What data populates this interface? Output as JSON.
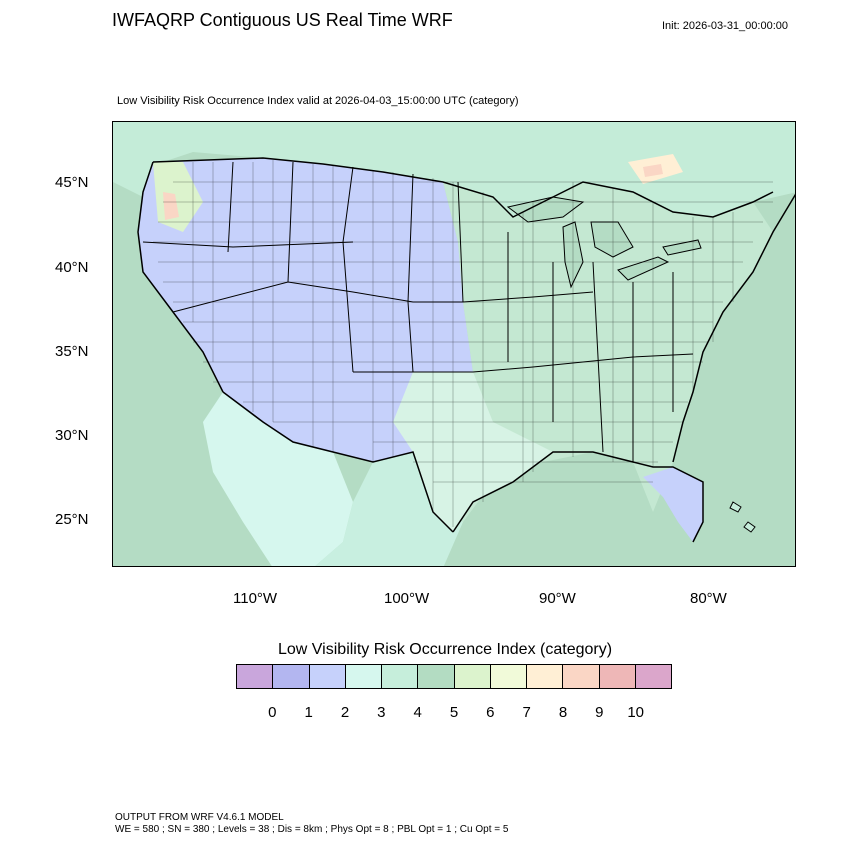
{
  "header": {
    "title": "IWFAQRP Contiguous US Real Time WRF",
    "init": "Init: 2026-03-31_00:00:00",
    "subtitle": "Low Visibility Risk Occurrence Index valid at 2026-04-03_15:00:00 UTC   (category)"
  },
  "map": {
    "lat_labels": [
      "45°N",
      "40°N",
      "35°N",
      "30°N",
      "25°N"
    ],
    "lon_labels": [
      "110°W",
      "100°W",
      "90°W",
      "80°W"
    ],
    "colors": {
      "ocean": "#b4dcc4",
      "cat2": "#c6d1fb",
      "cat3": "#d6f7ee",
      "cat4": "#c6eedb",
      "cat5": "#b3dcc2",
      "cat6": "#dcf3cd",
      "cat8": "#ffeed3",
      "cat9": "#f9d4c5",
      "border": "#000000"
    }
  },
  "legend": {
    "title": "Low Visibility Risk Occurrence Index  (category)",
    "ticks": [
      "0",
      "1",
      "2",
      "3",
      "4",
      "5",
      "6",
      "7",
      "8",
      "9",
      "10"
    ],
    "colors": [
      "#c9a6dc",
      "#b3b6f0",
      "#c6d1fb",
      "#d6f7ee",
      "#c6eedb",
      "#b3dcc2",
      "#dcf3cd",
      "#f1fad9",
      "#ffefd5",
      "#fad6c5",
      "#eeb7b7",
      "#dba6cb"
    ]
  },
  "footer": {
    "line1": "OUTPUT FROM WRF V4.6.1 MODEL",
    "line2": "WE = 580 ; SN = 380 ; Levels = 38 ; Dis = 8km ; Phys Opt = 8 ; PBL Opt = 1 ; Cu Opt = 5"
  }
}
